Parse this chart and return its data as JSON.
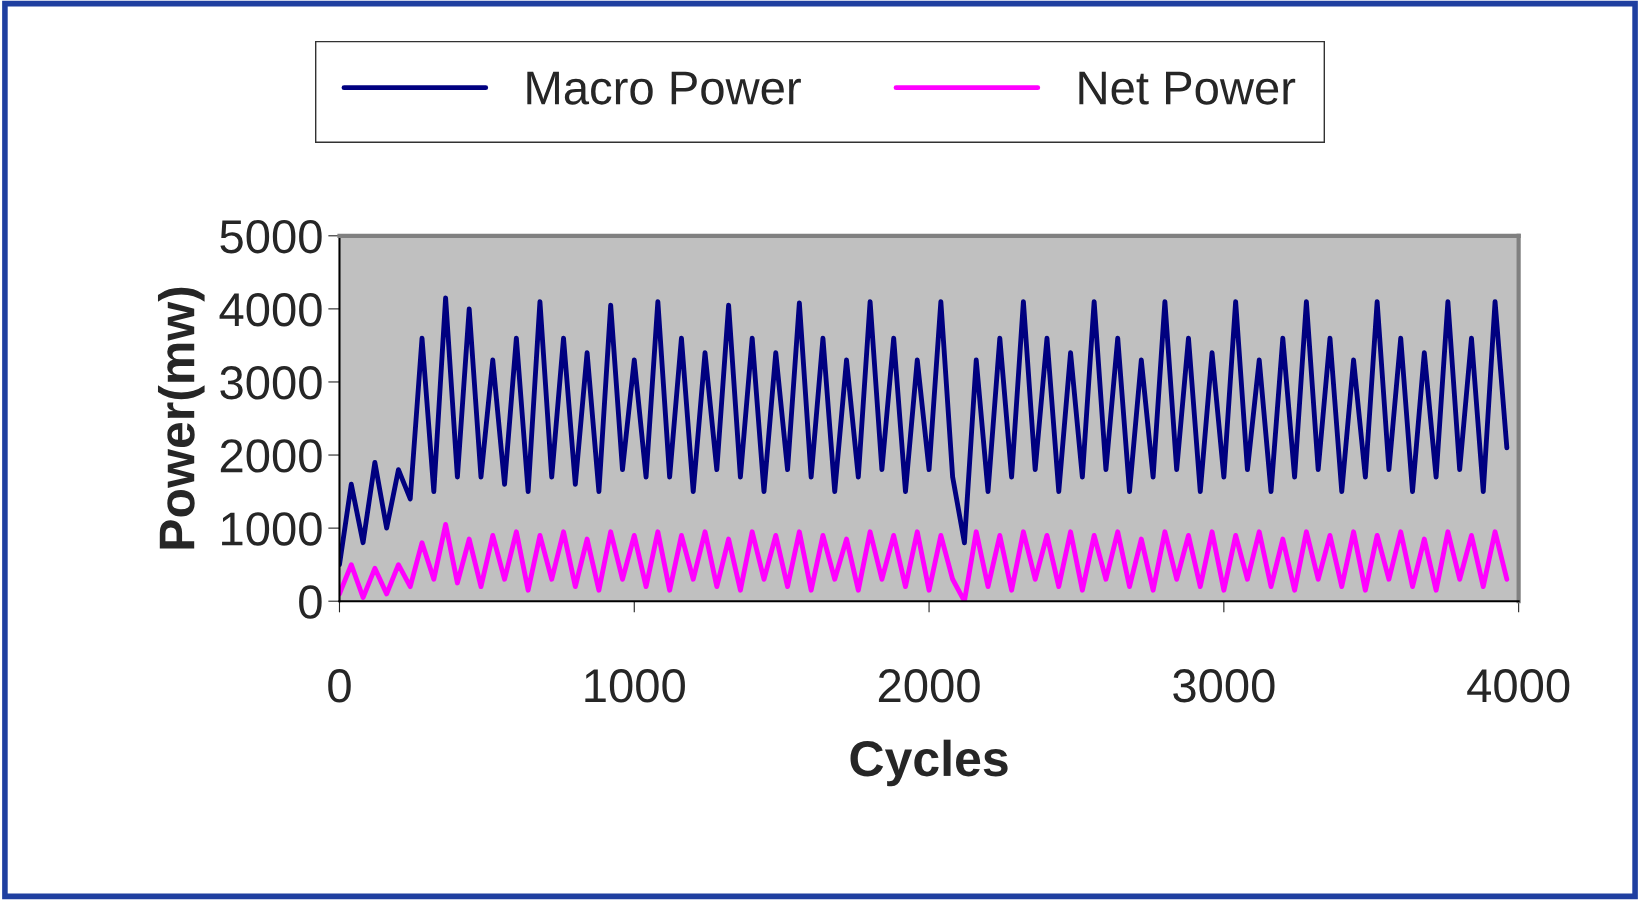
{
  "chart_data": {
    "type": "line",
    "xlabel": "Cycles",
    "ylabel": "Power(mw)",
    "x": [
      0,
      40,
      80,
      120,
      160,
      200,
      240,
      280,
      320,
      360,
      400,
      440,
      480,
      520,
      560,
      600,
      640,
      680,
      720,
      760,
      800,
      840,
      880,
      920,
      960,
      1000,
      1040,
      1080,
      1120,
      1160,
      1200,
      1240,
      1280,
      1320,
      1360,
      1400,
      1440,
      1480,
      1520,
      1560,
      1600,
      1640,
      1680,
      1720,
      1760,
      1800,
      1840,
      1880,
      1920,
      1960,
      2000,
      2040,
      2080,
      2120,
      2160,
      2200,
      2240,
      2280,
      2320,
      2360,
      2400,
      2440,
      2480,
      2520,
      2560,
      2600,
      2640,
      2680,
      2720,
      2760,
      2800,
      2840,
      2880,
      2920,
      2960,
      3000,
      3040,
      3080,
      3120,
      3160,
      3200,
      3240,
      3280,
      3320,
      3360,
      3400,
      3440,
      3480,
      3520,
      3560,
      3600,
      3640,
      3680,
      3720,
      3760,
      3800,
      3840,
      3880,
      3920,
      3960
    ],
    "series": [
      {
        "name": "Macro Power",
        "color": "#000080",
        "values": [
          500,
          1600,
          800,
          1900,
          1000,
          1800,
          1400,
          3600,
          1500,
          4150,
          1700,
          4000,
          1700,
          3300,
          1600,
          3600,
          1500,
          4100,
          1700,
          3600,
          1600,
          3400,
          1500,
          4050,
          1800,
          3300,
          1700,
          4100,
          1700,
          3600,
          1500,
          3400,
          1800,
          4050,
          1700,
          3600,
          1500,
          3400,
          1800,
          4080,
          1700,
          3600,
          1500,
          3300,
          1700,
          4100,
          1800,
          3600,
          1500,
          3300,
          1800,
          4100,
          1700,
          800,
          3300,
          1500,
          3600,
          1700,
          4100,
          1800,
          3600,
          1500,
          3400,
          1700,
          4100,
          1800,
          3600,
          1500,
          3300,
          1700,
          4100,
          1800,
          3600,
          1500,
          3400,
          1700,
          4100,
          1800,
          3300,
          1500,
          3600,
          1700,
          4100,
          1800,
          3600,
          1500,
          3300,
          1700,
          4100,
          1800,
          3600,
          1500,
          3400,
          1700,
          4100,
          1800,
          3600,
          1500,
          4100,
          2100
        ]
      },
      {
        "name": "Net Power",
        "color": "#ff00ff",
        "values": [
          100,
          500,
          50,
          450,
          100,
          500,
          200,
          800,
          300,
          1050,
          250,
          850,
          200,
          900,
          300,
          950,
          150,
          900,
          300,
          950,
          200,
          850,
          150,
          950,
          300,
          900,
          200,
          950,
          150,
          900,
          300,
          950,
          200,
          850,
          150,
          950,
          300,
          900,
          200,
          950,
          150,
          900,
          300,
          850,
          150,
          950,
          300,
          900,
          200,
          950,
          150,
          900,
          300,
          0,
          950,
          200,
          900,
          150,
          950,
          300,
          900,
          200,
          950,
          150,
          900,
          300,
          950,
          200,
          850,
          150,
          950,
          300,
          900,
          200,
          950,
          150,
          900,
          300,
          950,
          200,
          850,
          150,
          950,
          300,
          900,
          200,
          950,
          150,
          900,
          300,
          950,
          200,
          850,
          150,
          950,
          300,
          900,
          200,
          950,
          300
        ]
      }
    ],
    "xlim": [
      0,
      4000
    ],
    "xticks": [
      0,
      1000,
      2000,
      3000,
      4000
    ],
    "ylim": [
      0,
      5000
    ],
    "yticks": [
      0,
      1000,
      2000,
      3000,
      4000,
      5000
    ],
    "grid": false,
    "legend": "top",
    "marker": "none",
    "line_style": "solid"
  }
}
